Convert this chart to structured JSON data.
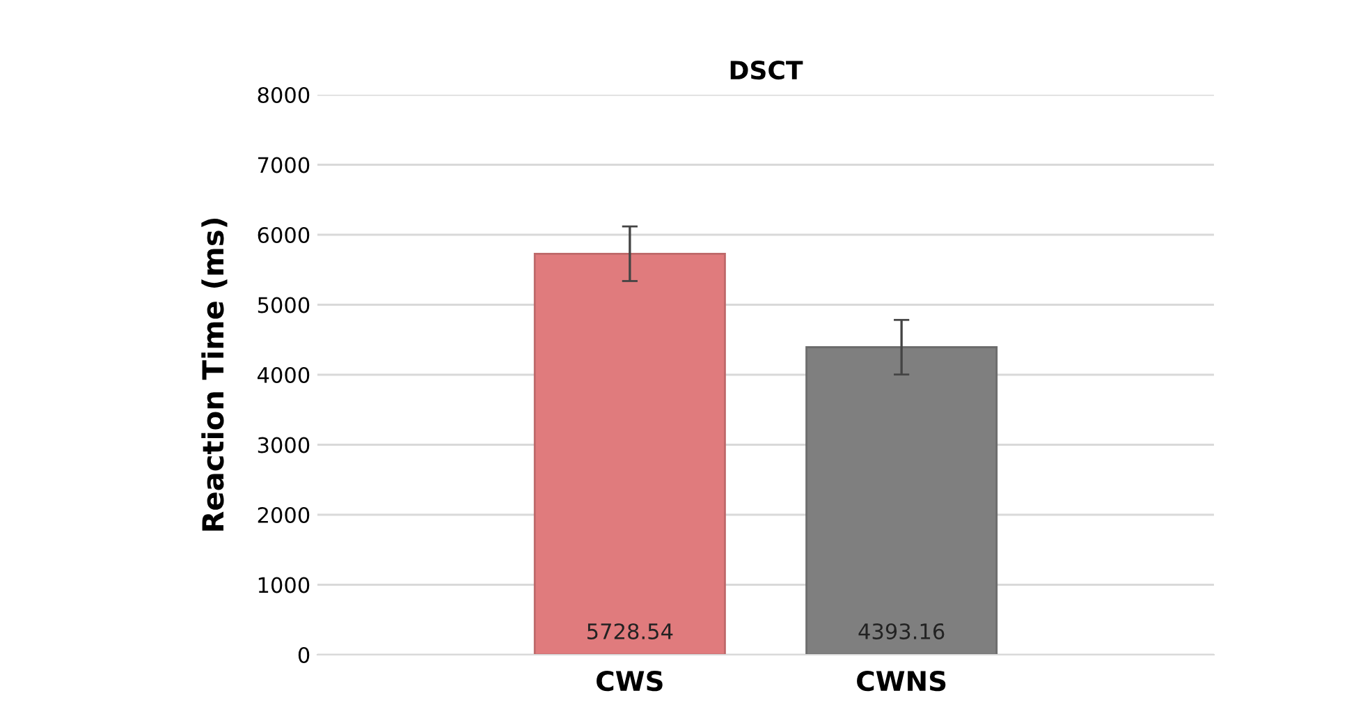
{
  "chart_data": {
    "type": "bar",
    "title": "DSCT",
    "ylabel": "Reaction Time (ms)",
    "categories": [
      "CWS",
      "CWNS"
    ],
    "values": [
      5728.54,
      4393.16
    ],
    "colors": [
      "#e07b7d",
      "#7f7f7f"
    ],
    "errors": [
      390,
      390
    ],
    "data_labels": true,
    "ylim": [
      0,
      8000
    ],
    "yticks": [
      0,
      1000,
      2000,
      3000,
      4000,
      5000,
      6000,
      7000,
      8000
    ],
    "grid": "y",
    "legend": false
  }
}
